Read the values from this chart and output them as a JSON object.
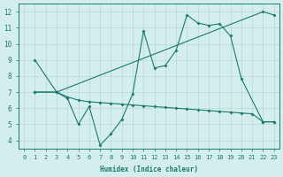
{
  "xlabel": "Humidex (Indice chaleur)",
  "xlim": [
    -0.5,
    23.5
  ],
  "ylim": [
    3.5,
    12.5
  ],
  "xticks": [
    0,
    1,
    2,
    3,
    4,
    5,
    6,
    7,
    8,
    9,
    10,
    11,
    12,
    13,
    14,
    15,
    16,
    17,
    18,
    19,
    20,
    21,
    22,
    23
  ],
  "yticks": [
    4,
    5,
    6,
    7,
    8,
    9,
    10,
    11,
    12
  ],
  "bg_color": "#d4eeed",
  "grid_color": "#b8d8d5",
  "line_color": "#1a7a6e",
  "line1_x": [
    1,
    3,
    22,
    23
  ],
  "line1_y": [
    9,
    7,
    12,
    11.8
  ],
  "line2_x": [
    1,
    3,
    4,
    5,
    6,
    7,
    8,
    9,
    10,
    11,
    12,
    13,
    14,
    15,
    16,
    17,
    18,
    19,
    20,
    21,
    22,
    23
  ],
  "line2_y": [
    7,
    7,
    6.7,
    6.5,
    6.4,
    6.35,
    6.3,
    6.25,
    6.2,
    6.15,
    6.1,
    6.05,
    6.0,
    5.95,
    5.9,
    5.85,
    5.8,
    5.75,
    5.7,
    5.65,
    5.15,
    5.15
  ],
  "line3_x": [
    1,
    3,
    4,
    5,
    6,
    7,
    8,
    9,
    10,
    11,
    12,
    13,
    14,
    15,
    16,
    17,
    18,
    19,
    20,
    22,
    23
  ],
  "line3_y": [
    7,
    7,
    6.6,
    5.0,
    6.1,
    3.7,
    4.4,
    5.3,
    6.9,
    10.8,
    8.5,
    8.65,
    9.6,
    11.8,
    11.3,
    11.15,
    11.25,
    10.5,
    7.85,
    5.15,
    5.15
  ]
}
